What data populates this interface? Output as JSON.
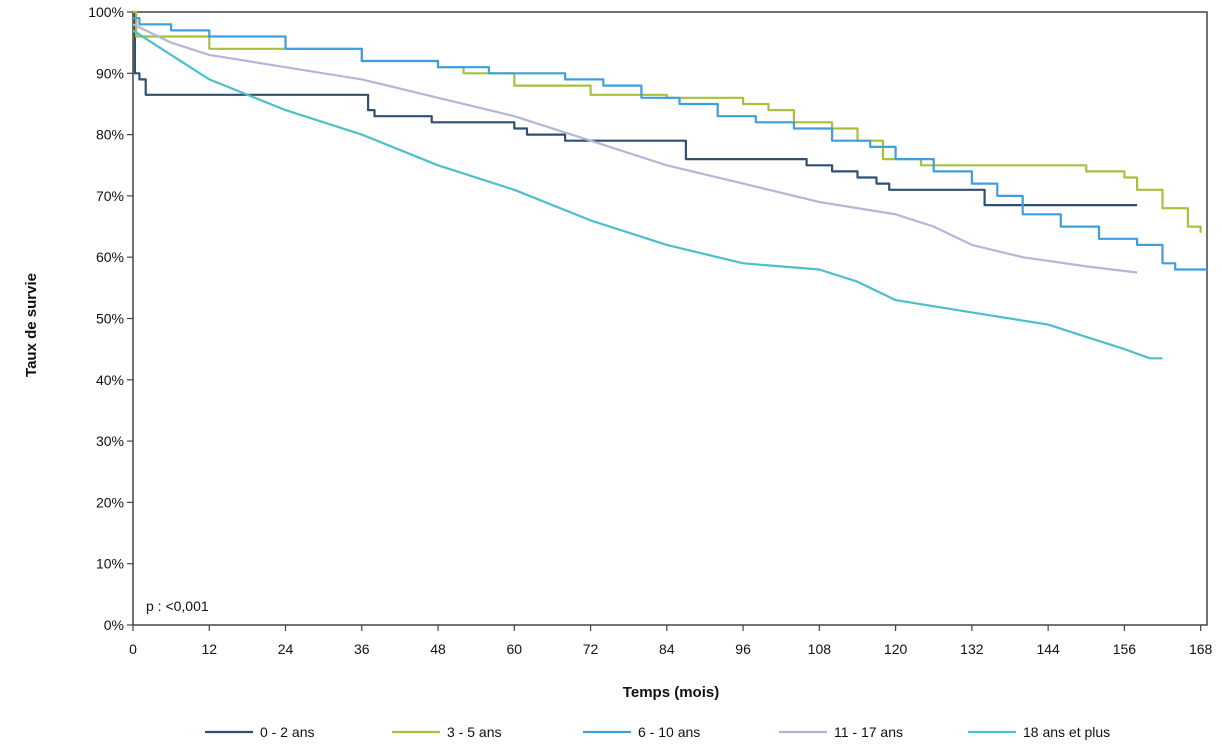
{
  "chart_data": {
    "type": "line",
    "title": "",
    "xlabel": "Temps (mois)",
    "ylabel": "Taux de survie",
    "xlim": [
      0,
      169
    ],
    "ylim": [
      0,
      100
    ],
    "x_ticks": [
      0,
      12,
      24,
      36,
      48,
      60,
      72,
      84,
      96,
      108,
      120,
      132,
      144,
      156,
      168
    ],
    "y_ticks": [
      0,
      10,
      20,
      30,
      40,
      50,
      60,
      70,
      80,
      90,
      100
    ],
    "y_tick_labels": [
      "0%",
      "10%",
      "20%",
      "30%",
      "40%",
      "50%",
      "60%",
      "70%",
      "80%",
      "90%",
      "100%"
    ],
    "annotation": "p : <0,001",
    "grid": false,
    "legend_position": "bottom",
    "series": [
      {
        "name": "0 - 2 ans",
        "color": "#2f4f73",
        "step": true,
        "points": [
          [
            0,
            100
          ],
          [
            0.3,
            90
          ],
          [
            1,
            89
          ],
          [
            2,
            86.5
          ],
          [
            36,
            86.5
          ],
          [
            37,
            84
          ],
          [
            38,
            83
          ],
          [
            46,
            83
          ],
          [
            47,
            82
          ],
          [
            58,
            82
          ],
          [
            60,
            81
          ],
          [
            62,
            80
          ],
          [
            66,
            80
          ],
          [
            68,
            79
          ],
          [
            86,
            79
          ],
          [
            87,
            76
          ],
          [
            104,
            76
          ],
          [
            106,
            75
          ],
          [
            110,
            74
          ],
          [
            114,
            73
          ],
          [
            117,
            72
          ],
          [
            119,
            71
          ],
          [
            132,
            71
          ],
          [
            134,
            68.5
          ],
          [
            158,
            68.5
          ]
        ]
      },
      {
        "name": "3 - 5 ans",
        "color": "#a8c13c",
        "step": true,
        "points": [
          [
            0,
            100
          ],
          [
            0.5,
            96
          ],
          [
            12,
            94
          ],
          [
            36,
            92
          ],
          [
            48,
            91
          ],
          [
            52,
            90
          ],
          [
            60,
            88
          ],
          [
            72,
            86.5
          ],
          [
            84,
            86
          ],
          [
            96,
            85
          ],
          [
            100,
            84
          ],
          [
            104,
            82
          ],
          [
            110,
            81
          ],
          [
            114,
            79
          ],
          [
            118,
            76
          ],
          [
            124,
            75
          ],
          [
            132,
            75
          ],
          [
            144,
            75
          ],
          [
            150,
            74
          ],
          [
            156,
            73
          ],
          [
            158,
            71
          ],
          [
            162,
            68
          ],
          [
            166,
            65
          ],
          [
            168,
            64
          ]
        ]
      },
      {
        "name": "6 - 10 ans",
        "color": "#3f9ede",
        "step": true,
        "points": [
          [
            0,
            99
          ],
          [
            1,
            98
          ],
          [
            6,
            97
          ],
          [
            12,
            96
          ],
          [
            24,
            94
          ],
          [
            36,
            92
          ],
          [
            48,
            91
          ],
          [
            56,
            90
          ],
          [
            64,
            90
          ],
          [
            68,
            89
          ],
          [
            74,
            88
          ],
          [
            80,
            86
          ],
          [
            86,
            85
          ],
          [
            92,
            83
          ],
          [
            98,
            82
          ],
          [
            104,
            81
          ],
          [
            110,
            79
          ],
          [
            116,
            78
          ],
          [
            120,
            76
          ],
          [
            126,
            74
          ],
          [
            132,
            72
          ],
          [
            136,
            70
          ],
          [
            140,
            67
          ],
          [
            146,
            65
          ],
          [
            152,
            63
          ],
          [
            158,
            62
          ],
          [
            162,
            59
          ],
          [
            164,
            58
          ],
          [
            169,
            58
          ]
        ]
      },
      {
        "name": "11 - 17 ans",
        "color": "#b4b6d6",
        "step": false,
        "points": [
          [
            0,
            98
          ],
          [
            6,
            95
          ],
          [
            12,
            93
          ],
          [
            24,
            91
          ],
          [
            36,
            89
          ],
          [
            48,
            86
          ],
          [
            60,
            83
          ],
          [
            72,
            79
          ],
          [
            84,
            75
          ],
          [
            96,
            72
          ],
          [
            108,
            69
          ],
          [
            120,
            67
          ],
          [
            126,
            65
          ],
          [
            132,
            62
          ],
          [
            140,
            60
          ],
          [
            150,
            58.5
          ],
          [
            158,
            57.5
          ]
        ]
      },
      {
        "name": "18 ans et plus",
        "color": "#4cbfc9",
        "step": false,
        "points": [
          [
            0,
            97
          ],
          [
            6,
            93
          ],
          [
            12,
            89
          ],
          [
            24,
            84
          ],
          [
            36,
            80
          ],
          [
            48,
            75
          ],
          [
            60,
            71
          ],
          [
            72,
            66
          ],
          [
            84,
            62
          ],
          [
            96,
            59
          ],
          [
            108,
            58
          ],
          [
            114,
            56
          ],
          [
            120,
            53
          ],
          [
            132,
            51
          ],
          [
            144,
            49
          ],
          [
            150,
            47
          ],
          [
            156,
            45
          ],
          [
            160,
            43.5
          ],
          [
            162,
            43.5
          ]
        ]
      }
    ]
  }
}
